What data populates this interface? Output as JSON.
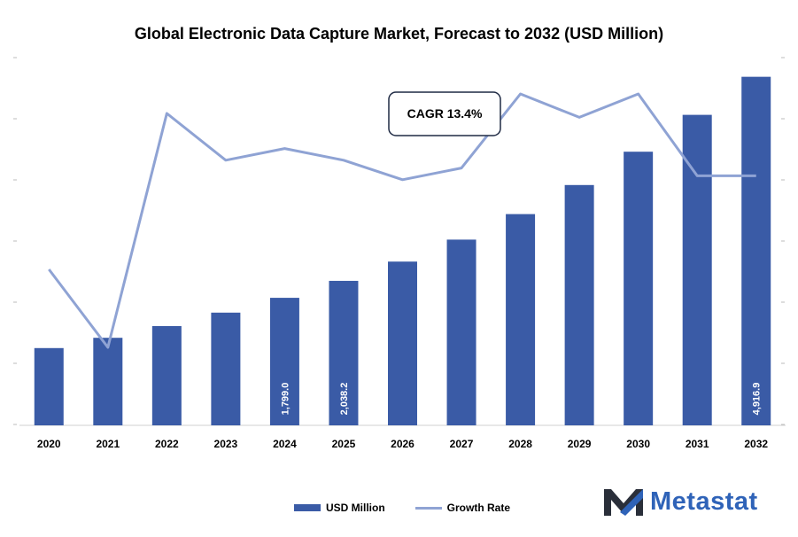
{
  "title": "Global Electronic Data Capture Market, Forecast to 2032 (USD Million)",
  "colors": {
    "bar": "#3a5ba6",
    "line": "#8fa3d4",
    "logo_dark": "#2a2f3a",
    "logo_blue": "#2f63b8"
  },
  "chart_data": {
    "type": "bar",
    "categories": [
      "2020",
      "2021",
      "2022",
      "2023",
      "2024",
      "2025",
      "2026",
      "2027",
      "2028",
      "2029",
      "2030",
      "2031",
      "2032"
    ],
    "series": [
      {
        "name": "USD Million",
        "kind": "bar",
        "values": [
          1090,
          1235,
          1400,
          1590,
          1799.0,
          2038.2,
          2310,
          2620,
          2980,
          3390,
          3860,
          4380,
          4916.9
        ]
      },
      {
        "name": "Growth Rate",
        "kind": "line",
        "values": [
          12.5,
          10.5,
          16.5,
          15.3,
          15.6,
          15.3,
          14.8,
          15.1,
          17.0,
          16.4,
          17.0,
          14.9,
          14.9
        ]
      }
    ],
    "data_labels": {
      "4": "1,799.0",
      "5": "2,038.2",
      "12": "4,916.9"
    },
    "ylim": [
      0,
      5500
    ],
    "y2lim": [
      8.5,
      18.5
    ],
    "annotation": "CAGR 13.4%",
    "xlabel": "",
    "ylabel": ""
  },
  "legend": {
    "bar_label": "USD Million",
    "line_label": "Growth Rate"
  },
  "logo": {
    "text": "Metastat"
  }
}
